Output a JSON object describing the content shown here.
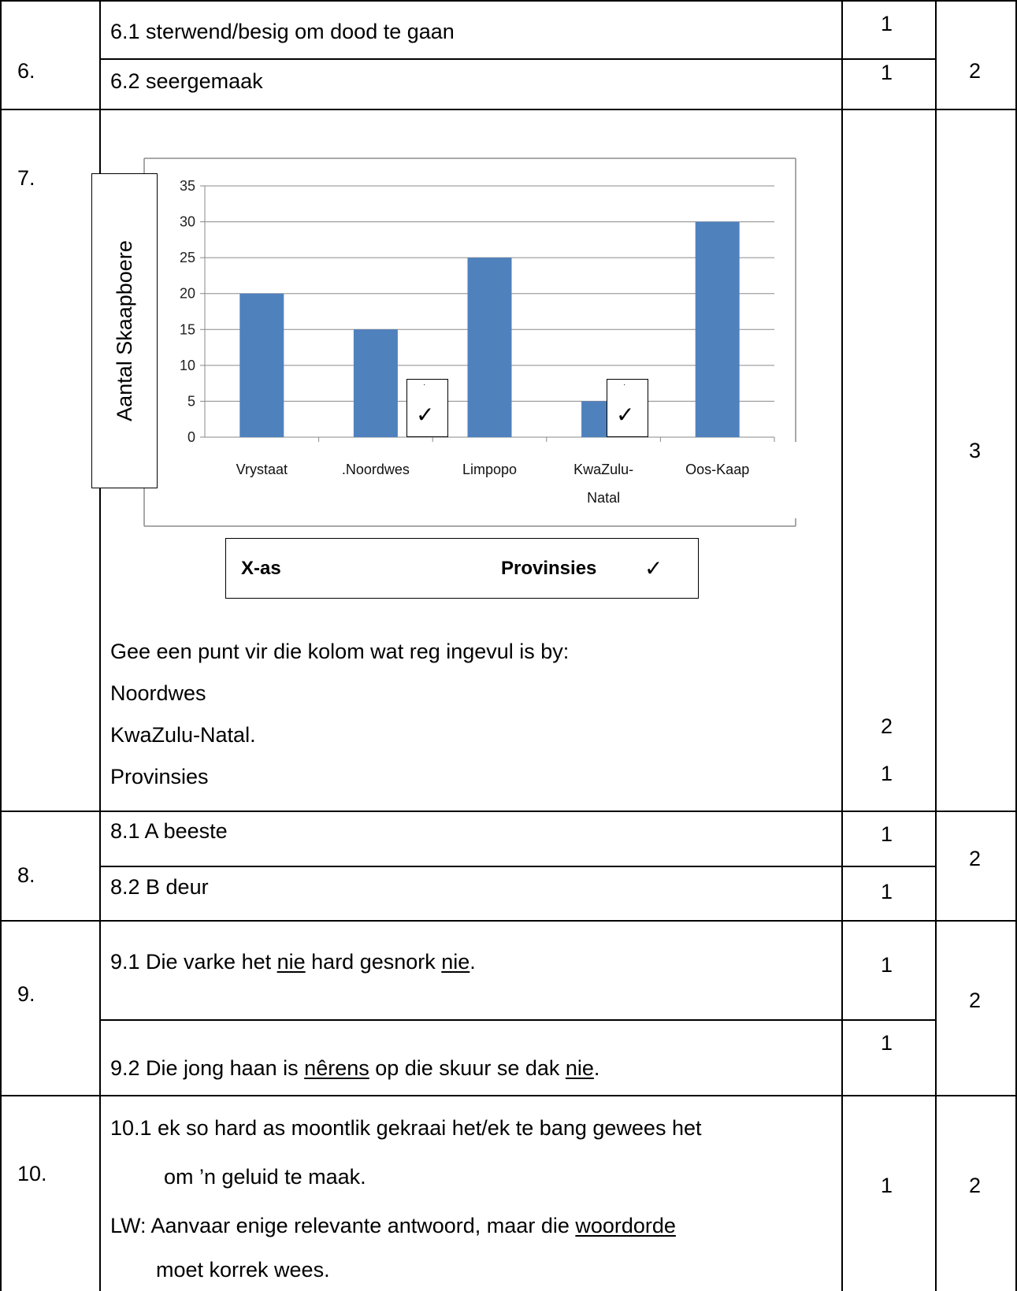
{
  "q6": {
    "num": "6.",
    "a1": "6.1 sterwend/besig om dood te gaan",
    "m1": "1",
    "a2": "6.2 seergemaak",
    "m2": "1",
    "total": "2"
  },
  "q7": {
    "num": "7.",
    "xbox": {
      "label": "X-as",
      "value": "Provinsies",
      "tick": "✓"
    },
    "note": "Gee een punt vir die kolom wat reg ingevul is by:",
    "items": [
      "Noordwes",
      "KwaZulu-Natal.",
      "Provinsies"
    ],
    "marks": [
      "2",
      "1"
    ],
    "total": "3",
    "tick_mark": "✓",
    "tick_dot": "·"
  },
  "chart_data": {
    "type": "bar",
    "ylabel": "Aantal Skaapboere",
    "categories": [
      "Vrystaat",
      ".Noordwes",
      "Limpopo",
      "KwaZulu-Natal",
      "Oos-Kaap"
    ],
    "category_lines": [
      [
        "Vrystaat"
      ],
      [
        ".Noordwes"
      ],
      [
        "Limpopo"
      ],
      [
        "KwaZulu-",
        "Natal"
      ],
      [
        "Oos-Kaap"
      ]
    ],
    "values": [
      20,
      15,
      25,
      5,
      30
    ],
    "ylim": [
      0,
      35
    ],
    "yticks": [
      0,
      5,
      10,
      15,
      20,
      25,
      30,
      35
    ],
    "grid": true,
    "bar_color": "#4f81bd",
    "ticked_categories": [
      ".Noordwes",
      "KwaZulu-Natal"
    ]
  },
  "q8": {
    "num": "8.",
    "a1": "8.1 A   beeste",
    "m1": "1",
    "a2": "8.2 B   deur",
    "m2": "1",
    "total": "2"
  },
  "q9": {
    "num": "9.",
    "a1": {
      "p1": "9.1 Die varke het ",
      "u1": "nie",
      "p2": " hard gesnork ",
      "u2": "nie",
      "p3": "."
    },
    "m1": "1",
    "a2": {
      "p1": "9.2 Die jong haan is ",
      "u1": "nêrens",
      "p2": " op die skuur se dak ",
      "u2": "nie",
      "p3": "."
    },
    "m2": "1",
    "total": "2"
  },
  "q10": {
    "num": "10.",
    "line1": "10.1 ek so hard as moontlik gekraai het/ek te bang gewees het",
    "line2": "om ’n geluid te maak.",
    "line3a": "LW: Aanvaar enige relevante antwoord, maar die ",
    "line3u": "woordorde",
    "line4": "moet korrek wees.",
    "mark": "1",
    "total": "2"
  }
}
